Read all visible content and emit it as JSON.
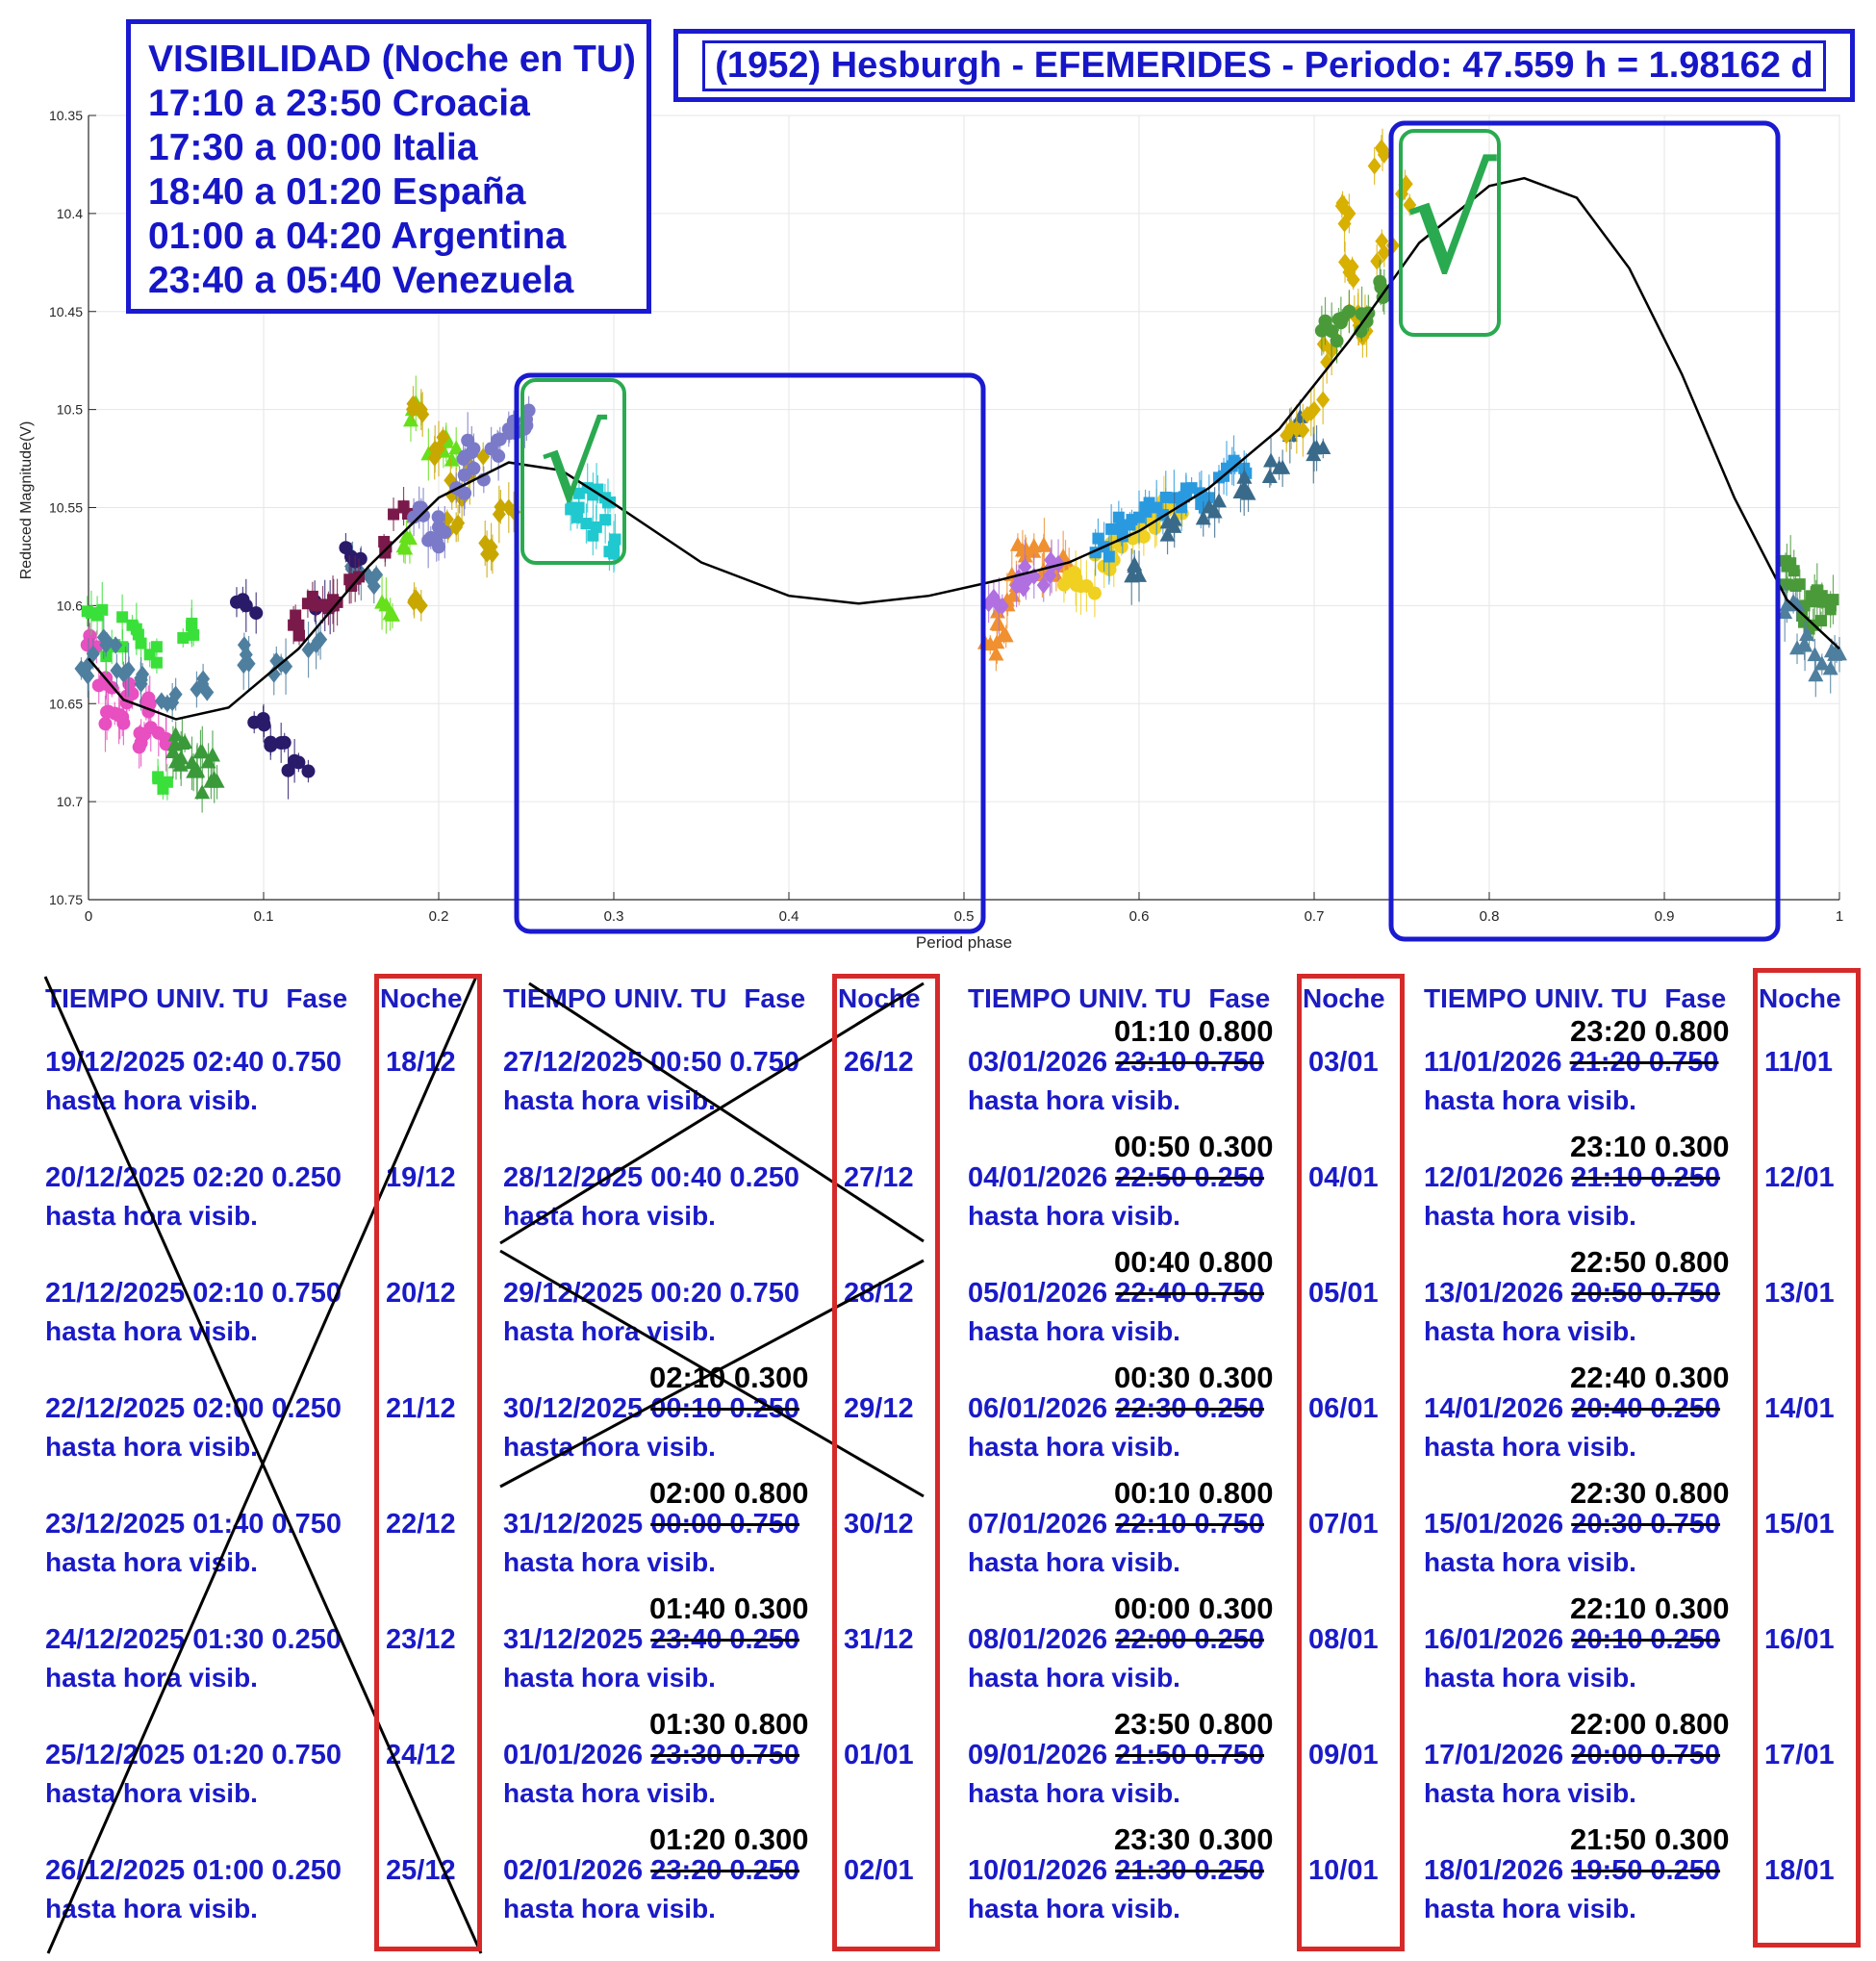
{
  "visibility": {
    "title": "VISIBILIDAD (Noche en TU)",
    "lines": [
      "17:10 a 23:50 Croacia",
      "17:30 a 00:00 Italia",
      "18:40 a 01:20 España",
      "01:00 a 04:20 Argentina",
      "23:40 a 05:40 Venezuela"
    ]
  },
  "chart_title": "(1952) Hesburgh - EFEMERIDES - Periodo: 47.559 h = 1.98162 d",
  "check_mark": "√",
  "chart_data": {
    "type": "scatter",
    "xlabel": "Period phase",
    "ylabel": "Reduced Magnitude(V)",
    "xlim": [
      0,
      1
    ],
    "ylim": [
      10.75,
      10.35
    ],
    "y_inverted": true,
    "grid": true,
    "x_ticks": [
      "0",
      "0.1",
      "0.2",
      "0.3",
      "0.4",
      "0.5",
      "0.6",
      "0.7",
      "0.8",
      "0.9",
      "1"
    ],
    "y_ticks": [
      "10.35",
      "10.4",
      "10.45",
      "10.5",
      "10.55",
      "10.6",
      "10.65",
      "10.7",
      "10.75"
    ],
    "fit_curve": {
      "x": [
        0,
        0.02,
        0.05,
        0.08,
        0.12,
        0.16,
        0.2,
        0.24,
        0.27,
        0.3,
        0.35,
        0.4,
        0.44,
        0.48,
        0.52,
        0.56,
        0.6,
        0.64,
        0.68,
        0.72,
        0.76,
        0.8,
        0.82,
        0.85,
        0.88,
        0.91,
        0.94,
        0.97,
        1.0
      ],
      "y": [
        10.627,
        10.648,
        10.658,
        10.652,
        10.622,
        10.58,
        10.545,
        10.527,
        10.531,
        10.548,
        10.578,
        10.595,
        10.599,
        10.595,
        10.587,
        10.578,
        10.562,
        10.54,
        10.51,
        10.465,
        10.415,
        10.386,
        10.382,
        10.392,
        10.428,
        10.482,
        10.545,
        10.597,
        10.622
      ]
    },
    "series": [
      {
        "color": "#e84fc0",
        "x": [
          0.0,
          0.01,
          0.015,
          0.02,
          0.025,
          0.03,
          0.035,
          0.04
        ],
        "y": [
          10.62,
          10.64,
          10.655,
          10.66,
          10.645,
          10.67,
          10.65,
          10.665
        ]
      },
      {
        "color": "#3ae03a",
        "x": [
          0.005,
          0.015,
          0.025,
          0.035,
          0.045,
          0.06
        ],
        "y": [
          10.605,
          10.62,
          10.61,
          10.625,
          10.69,
          10.615
        ]
      },
      {
        "color": "#3a9a3a",
        "x": [
          0.05,
          0.055,
          0.06,
          0.065,
          0.07
        ],
        "y": [
          10.68,
          10.67,
          10.685,
          10.675,
          10.69
        ]
      },
      {
        "color": "#4f7f9f",
        "x": [
          0.0,
          0.01,
          0.02,
          0.03,
          0.045,
          0.065,
          0.09,
          0.11,
          0.13,
          0.15,
          0.16
        ],
        "y": [
          10.63,
          10.62,
          10.635,
          10.64,
          10.65,
          10.64,
          10.625,
          10.63,
          10.62,
          10.58,
          10.585
        ]
      },
      {
        "color": "#2a1a6a",
        "x": [
          0.09,
          0.1,
          0.11,
          0.12,
          0.135,
          0.15
        ],
        "y": [
          10.6,
          10.66,
          10.67,
          10.68,
          10.6,
          10.575
        ]
      },
      {
        "color": "#7a1a4a",
        "x": [
          0.12,
          0.13,
          0.14,
          0.15,
          0.17,
          0.18
        ],
        "y": [
          10.61,
          10.6,
          10.6,
          10.59,
          10.57,
          10.55
        ]
      },
      {
        "color": "#66e01a",
        "x": [
          0.17,
          0.18,
          0.19,
          0.2,
          0.21
        ],
        "y": [
          10.6,
          10.57,
          10.5,
          10.52,
          10.52
        ]
      },
      {
        "color": "#c8a800",
        "x": [
          0.19,
          0.2,
          0.21,
          0.22,
          0.23,
          0.24,
          0.19,
          0.21
        ],
        "y": [
          10.5,
          10.52,
          10.54,
          10.53,
          10.57,
          10.55,
          10.6,
          10.56
        ]
      },
      {
        "color": "#7a7ac8",
        "x": [
          0.19,
          0.2,
          0.21,
          0.22,
          0.23,
          0.24,
          0.25,
          0.2,
          0.22
        ],
        "y": [
          10.55,
          10.56,
          10.54,
          10.53,
          10.52,
          10.51,
          10.505,
          10.57,
          10.52
        ]
      },
      {
        "color": "#20c8d0",
        "x": [
          0.28,
          0.285,
          0.29,
          0.295,
          0.3
        ],
        "y": [
          10.55,
          10.54,
          10.56,
          10.545,
          10.57
        ]
      },
      {
        "color": "#f09030",
        "x": [
          0.515,
          0.52,
          0.525,
          0.53,
          0.535,
          0.54,
          0.55,
          0.56
        ],
        "y": [
          10.62,
          10.61,
          10.6,
          10.59,
          10.575,
          10.57,
          10.58,
          10.58
        ]
      },
      {
        "color": "#b070e0",
        "x": [
          0.52,
          0.53,
          0.54,
          0.55
        ],
        "y": [
          10.6,
          10.59,
          10.585,
          10.58
        ]
      },
      {
        "color": "#f0d020",
        "x": [
          0.56,
          0.57,
          0.58,
          0.59,
          0.6,
          0.61,
          0.62
        ],
        "y": [
          10.585,
          10.59,
          10.58,
          10.57,
          10.56,
          10.555,
          10.55
        ]
      },
      {
        "color": "#2a9ae0",
        "x": [
          0.58,
          0.59,
          0.6,
          0.61,
          0.62,
          0.63,
          0.64,
          0.65,
          0.66
        ],
        "y": [
          10.57,
          10.56,
          10.555,
          10.55,
          10.545,
          10.54,
          10.545,
          10.53,
          10.53
        ]
      },
      {
        "color": "#3a6a8a",
        "x": [
          0.6,
          0.62,
          0.64,
          0.66,
          0.68,
          0.69,
          0.7
        ],
        "y": [
          10.585,
          10.56,
          10.55,
          10.54,
          10.53,
          10.51,
          10.52
        ]
      },
      {
        "color": "#d8b000",
        "x": [
          0.69,
          0.7,
          0.71,
          0.72,
          0.72,
          0.73,
          0.74,
          0.74,
          0.75,
          0.72
        ],
        "y": [
          10.51,
          10.5,
          10.47,
          10.45,
          10.43,
          10.46,
          10.42,
          10.37,
          10.39,
          10.4
        ]
      },
      {
        "color": "#4a9a3a",
        "x": [
          0.71,
          0.72,
          0.73,
          0.74
        ],
        "y": [
          10.46,
          10.45,
          10.455,
          10.44
        ]
      },
      {
        "color": "#4a9a3a",
        "x": [
          0.97,
          0.975,
          0.98,
          0.985,
          0.99,
          0.995
        ],
        "y": [
          10.58,
          10.59,
          10.6,
          10.61,
          10.595,
          10.6
        ]
      },
      {
        "color": "#4f7f9f",
        "x": [
          0.97,
          0.98,
          0.99,
          1.0
        ],
        "y": [
          10.6,
          10.62,
          10.63,
          10.625
        ]
      }
    ]
  },
  "ephemeris": {
    "header": {
      "time": "TIEMPO UNIV. TU",
      "phase": "Fase",
      "night": "Noche"
    },
    "columns": [
      {
        "entries": [
          {
            "date_time": "19/12/2025  02:40 0.750",
            "night": "18/12",
            "note": "hasta hora visib."
          },
          {
            "date_time": "20/12/2025  02:20 0.250",
            "night": "19/12",
            "note": "hasta hora visib."
          },
          {
            "date_time": "21/12/2025  02:10 0.750",
            "night": "20/12",
            "note": "hasta hora visib."
          },
          {
            "date_time": "22/12/2025  02:00 0.250",
            "night": "21/12",
            "note": "hasta hora visib."
          },
          {
            "date_time": "23/12/2025  01:40 0.750",
            "night": "22/12",
            "note": "hasta hora visib."
          },
          {
            "date_time": "24/12/2025  01:30 0.250",
            "night": "23/12",
            "note": "hasta hora visib."
          },
          {
            "date_time": "25/12/2025  01:20 0.750",
            "night": "24/12",
            "note": "hasta hora visib."
          },
          {
            "date_time": "26/12/2025  01:00 0.250",
            "night": "25/12",
            "note": "hasta hora visib."
          }
        ]
      },
      {
        "entries": [
          {
            "date_time": "27/12/2025  00:50 0.750",
            "night": "26/12",
            "note": "hasta hora visib."
          },
          {
            "date_time": "28/12/2025  00:40 0.250",
            "night": "27/12",
            "note": "hasta hora visib."
          },
          {
            "date_time": "29/12/2025  00:20 0.750",
            "night": "28/12",
            "note": "hasta hora visib."
          },
          {
            "date": "30/12/2025",
            "old": "00:10 0.250",
            "correction": "02:10 0.300",
            "night": "29/12",
            "note": "hasta hora visib."
          },
          {
            "date": "31/12/2025",
            "old": "00:00 0.750",
            "correction": "02:00 0.800",
            "night": "30/12",
            "note": "hasta hora visib."
          },
          {
            "date": "31/12/2025",
            "old": "23:40 0.250",
            "correction": "01:40 0.300",
            "night": "31/12",
            "note": "hasta hora visib."
          },
          {
            "date": "01/01/2026",
            "old": "23:30 0.750",
            "correction": "01:30 0.800",
            "night": "01/01",
            "note": "hasta hora visib."
          },
          {
            "date": "02/01/2026",
            "old": "23:20 0.250",
            "correction": "01:20 0.300",
            "night": "02/01",
            "note": "hasta hora visib."
          }
        ]
      },
      {
        "entries": [
          {
            "date": "03/01/2026",
            "old": "23:10 0.750",
            "correction": "01:10 0.800",
            "night": "03/01",
            "note": "hasta hora visib."
          },
          {
            "date": "04/01/2026",
            "old": "22:50 0.250",
            "correction": "00:50 0.300",
            "night": "04/01",
            "note": "hasta hora visib."
          },
          {
            "date": "05/01/2026",
            "old": "22:40 0.750",
            "correction": "00:40 0.800",
            "night": "05/01",
            "note": "hasta hora visib."
          },
          {
            "date": "06/01/2026",
            "old": "22:30 0.250",
            "correction": "00:30 0.300",
            "night": "06/01",
            "note": "hasta hora visib."
          },
          {
            "date": "07/01/2026",
            "old": "22:10 0.750",
            "correction": "00:10 0.800",
            "night": "07/01",
            "note": "hasta hora visib."
          },
          {
            "date": "08/01/2026",
            "old": "22:00 0.250",
            "correction": "00:00 0.300",
            "night": "08/01",
            "note": "hasta hora visib."
          },
          {
            "date": "09/01/2026",
            "old": "21:50 0.750",
            "correction": "23:50 0.800",
            "night": "09/01",
            "note": "hasta hora visib."
          },
          {
            "date": "10/01/2026",
            "old": "21:30 0.250",
            "correction": "23:30 0.300",
            "night": "10/01",
            "note": "hasta hora visib."
          }
        ]
      },
      {
        "entries": [
          {
            "date": "11/01/2026",
            "old": "21:20 0.750",
            "correction": "23:20 0.800",
            "night": "11/01",
            "note": "hasta hora visib."
          },
          {
            "date": "12/01/2026",
            "old": "21:10 0.250",
            "correction": "23:10 0.300",
            "night": "12/01",
            "note": "hasta hora visib."
          },
          {
            "date": "13/01/2026",
            "old": "20:50 0.750",
            "correction": "22:50 0.800",
            "night": "13/01",
            "note": "hasta hora visib."
          },
          {
            "date": "14/01/2026",
            "old": "20:40 0.250",
            "correction": "22:40 0.300",
            "night": "14/01",
            "note": "hasta hora visib."
          },
          {
            "date": "15/01/2026",
            "old": "20:30 0.750",
            "correction": "22:30 0.800",
            "night": "15/01",
            "note": "hasta hora visib."
          },
          {
            "date": "16/01/2026",
            "old": "20:10 0.250",
            "correction": "22:10 0.300",
            "night": "16/01",
            "note": "hasta hora visib."
          },
          {
            "date": "17/01/2026",
            "old": "20:00 0.750",
            "correction": "22:00 0.800",
            "night": "17/01",
            "note": "hasta hora visib."
          },
          {
            "date": "18/01/2026",
            "old": "19:50 0.250",
            "correction": "21:50 0.300",
            "night": "18/01",
            "note": "hasta hora visib."
          }
        ]
      }
    ]
  },
  "colors": {
    "blue_text": "#1a1ac8",
    "box_blue": "#1a1ad0",
    "box_red": "#d62a2a",
    "check_green": "#2aaa50",
    "fit_line": "#000000"
  }
}
